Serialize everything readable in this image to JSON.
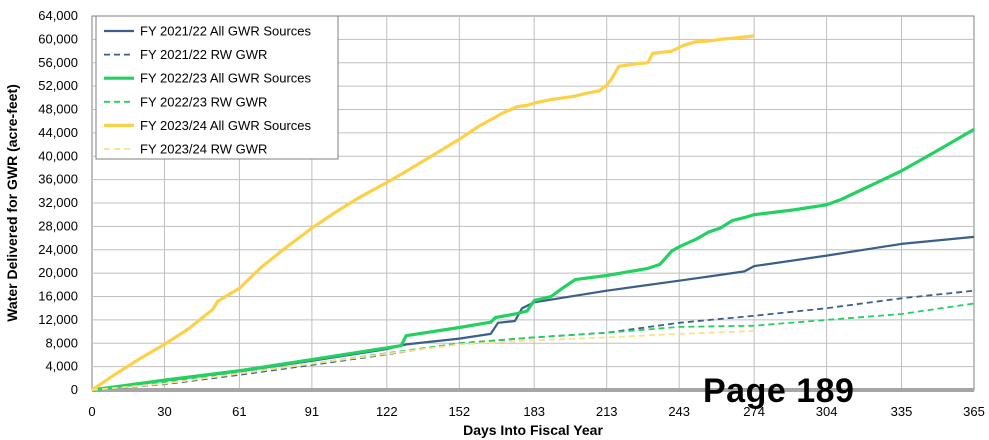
{
  "chart_data": {
    "type": "line",
    "title": "",
    "xlabel": "Days Into Fiscal Year",
    "ylabel": "Water Delivered for GWR (acre-feet)",
    "xlim": [
      0,
      365
    ],
    "ylim": [
      0,
      64000
    ],
    "x_ticks": [
      "0",
      "30",
      "61",
      "91",
      "122",
      "152",
      "183",
      "213",
      "243",
      "274",
      "304",
      "335",
      "365"
    ],
    "x_tick_values": [
      0,
      30,
      61,
      91,
      122,
      152,
      183,
      213,
      243,
      274,
      304,
      335,
      365
    ],
    "y_ticks": [
      "0",
      "4,000",
      "8,000",
      "12,000",
      "16,000",
      "20,000",
      "24,000",
      "28,000",
      "32,000",
      "36,000",
      "40,000",
      "44,000",
      "48,000",
      "52,000",
      "56,000",
      "60,000",
      "64,000"
    ],
    "y_tick_values": [
      0,
      4000,
      8000,
      12000,
      16000,
      20000,
      24000,
      28000,
      32000,
      36000,
      40000,
      44000,
      48000,
      52000,
      56000,
      60000,
      64000
    ],
    "grid": true,
    "legend_position": "top-left",
    "series": [
      {
        "name": "FY 2021/22 All GWR Sources",
        "color": "#3a5f8a",
        "dash": "solid",
        "x": [
          0,
          30,
          61,
          91,
          122,
          130,
          152,
          165,
          168,
          175,
          178,
          183,
          213,
          243,
          260,
          270,
          274,
          304,
          335,
          365
        ],
        "y": [
          0,
          1600,
          3200,
          5000,
          7000,
          7800,
          8800,
          9600,
          11500,
          11800,
          14000,
          15000,
          17000,
          18700,
          19700,
          20300,
          21200,
          23000,
          25000,
          26200
        ]
      },
      {
        "name": "FY 2021/22 RW GWR",
        "color": "#3a5f8a",
        "dash": "dashed",
        "x": [
          0,
          30,
          61,
          91,
          122,
          152,
          183,
          213,
          243,
          274,
          304,
          335,
          365
        ],
        "y": [
          0,
          1000,
          2600,
          4300,
          6100,
          8000,
          9000,
          9800,
          11500,
          12700,
          14000,
          15700,
          17000
        ]
      },
      {
        "name": "FY 2022/23 All GWR Sources",
        "color": "#22d160",
        "dash": "solid",
        "x": [
          0,
          30,
          61,
          91,
          122,
          128,
          130,
          152,
          165,
          167,
          175,
          180,
          183,
          190,
          195,
          200,
          213,
          230,
          235,
          240,
          243,
          250,
          255,
          260,
          265,
          270,
          274,
          290,
          304,
          310,
          335,
          350,
          365
        ],
        "y": [
          0,
          1700,
          3300,
          5200,
          7200,
          7600,
          9300,
          10700,
          11600,
          12400,
          13000,
          13500,
          15300,
          16000,
          17500,
          18900,
          19600,
          20800,
          21500,
          23800,
          24500,
          25800,
          27000,
          27700,
          29000,
          29500,
          30000,
          30800,
          31700,
          32600,
          37500,
          41000,
          44600
        ]
      },
      {
        "name": "FY 2022/23 RW GWR",
        "color": "#22d160",
        "dash": "dashed",
        "x": [
          0,
          30,
          61,
          91,
          122,
          152,
          183,
          213,
          243,
          274,
          304,
          335,
          365
        ],
        "y": [
          0,
          1300,
          2900,
          4500,
          6300,
          8000,
          9000,
          9800,
          10800,
          11000,
          12000,
          13000,
          14800
        ]
      },
      {
        "name": "FY 2023/24 All GWR Sources",
        "color": "#fdd147",
        "dash": "solid",
        "x": [
          0,
          10,
          20,
          30,
          40,
          50,
          52,
          61,
          70,
          80,
          91,
          100,
          110,
          122,
          130,
          140,
          152,
          160,
          170,
          176,
          180,
          183,
          190,
          200,
          205,
          210,
          213,
          215,
          218,
          225,
          230,
          232,
          240,
          245,
          250,
          255,
          260,
          265,
          270,
          274
        ],
        "y": [
          0,
          2800,
          5400,
          7800,
          10500,
          13800,
          15200,
          17400,
          21000,
          24300,
          27700,
          30200,
          32800,
          35500,
          37400,
          39900,
          42900,
          45100,
          47400,
          48500,
          48700,
          49100,
          49700,
          50300,
          50800,
          51200,
          52200,
          53200,
          55400,
          55800,
          56000,
          57600,
          58000,
          59000,
          59600,
          59700,
          60000,
          60200,
          60400,
          60600
        ]
      },
      {
        "name": "FY 2023/24 RW GWR",
        "color": "#fde08a",
        "dash": "dashed",
        "x": [
          0,
          30,
          61,
          91,
          122,
          152,
          183,
          213,
          243,
          274
        ],
        "y": [
          0,
          1100,
          2800,
          4500,
          6200,
          7800,
          8500,
          9000,
          9600,
          10100
        ]
      }
    ]
  },
  "page_label": "Page 189"
}
